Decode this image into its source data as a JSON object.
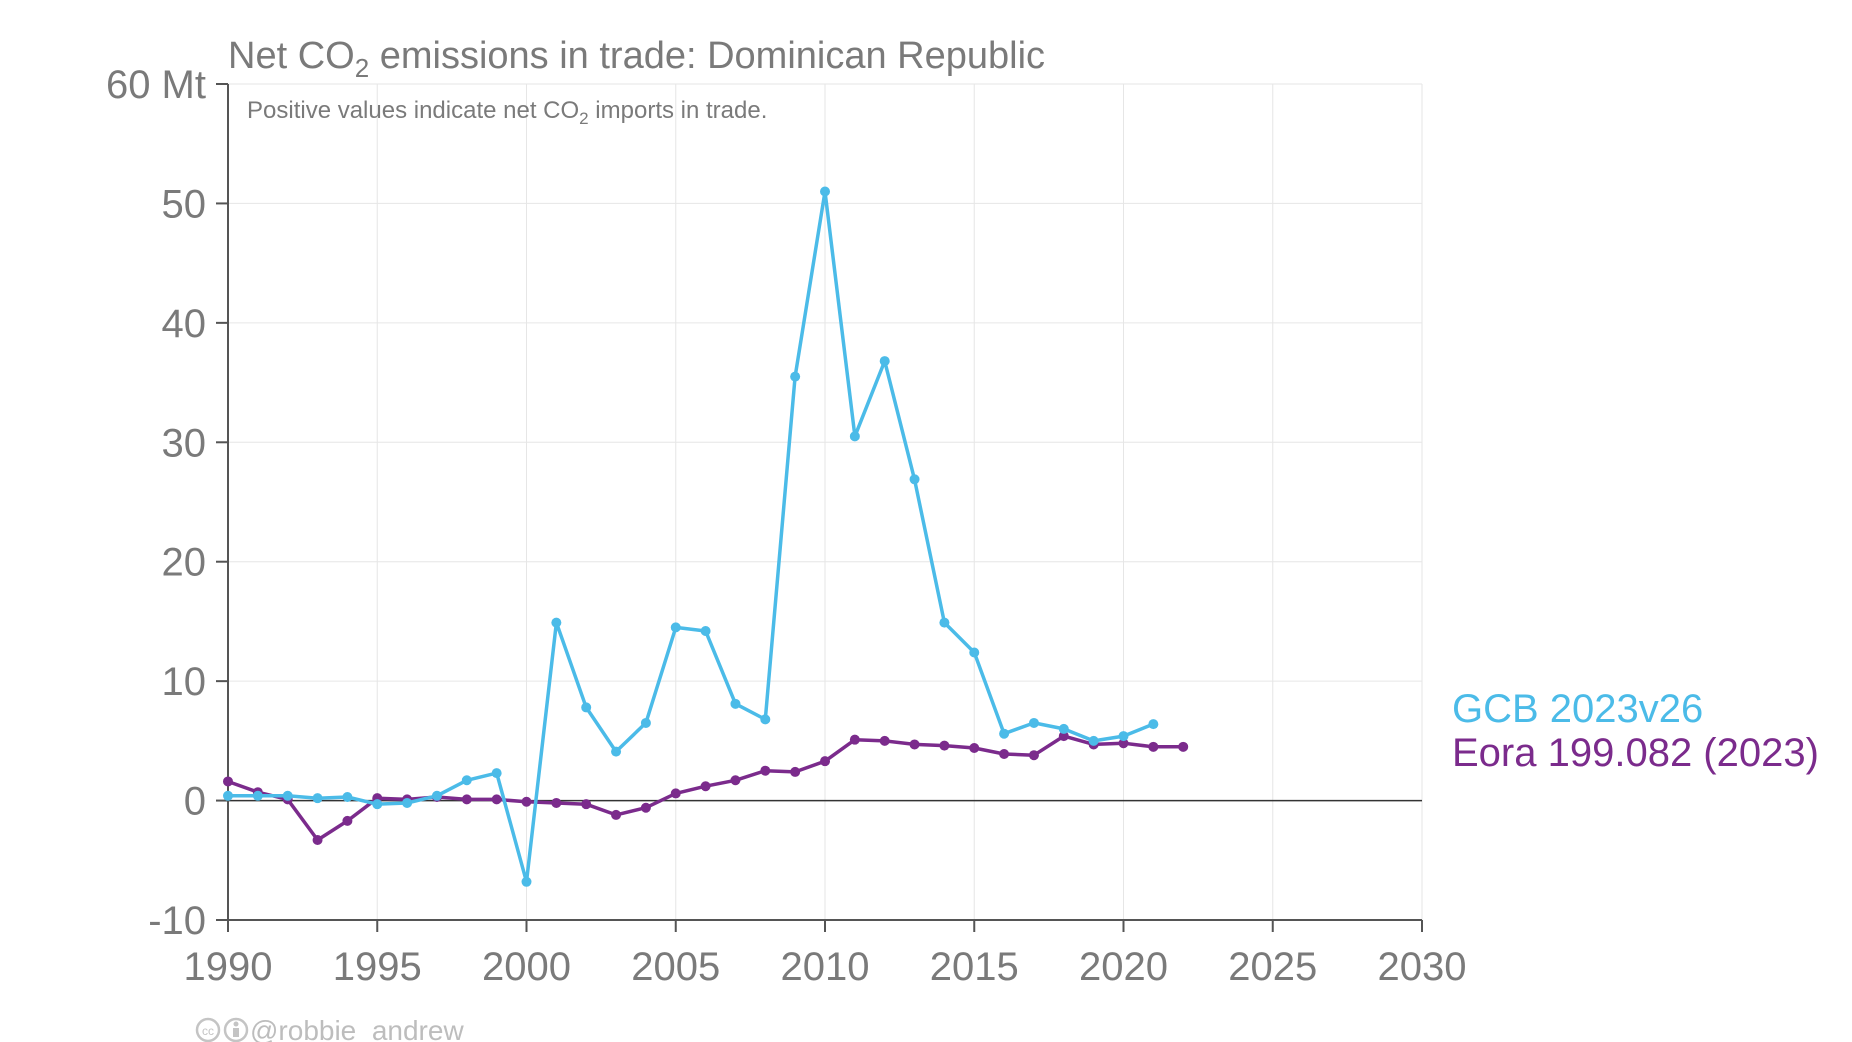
{
  "chart_data": {
    "type": "line",
    "title_prefix": "Net CO",
    "title_sub": "2",
    "title_suffix": " emissions in trade: Dominican Republic",
    "subtitle_prefix": "Positive values indicate net CO",
    "subtitle_sub": "2",
    "subtitle_suffix": " imports in trade.",
    "xlim": [
      1990,
      2030
    ],
    "ylim": [
      -10,
      60
    ],
    "x_ticks": [
      "1990",
      "1995",
      "2000",
      "2005",
      "2010",
      "2015",
      "2020",
      "2025",
      "2030"
    ],
    "y_ticks": [
      "-10",
      "0",
      "10",
      "20",
      "30",
      "40",
      "50",
      "60 Mt"
    ],
    "grid": true,
    "legend_position": "right",
    "series": [
      {
        "name": "GCB 2023v26",
        "color": "#4bbbe8",
        "x": [
          1990,
          1991,
          1992,
          1993,
          1994,
          1995,
          1996,
          1997,
          1998,
          1999,
          2000,
          2001,
          2002,
          2003,
          2004,
          2005,
          2006,
          2007,
          2008,
          2009,
          2010,
          2011,
          2012,
          2013,
          2014,
          2015,
          2016,
          2017,
          2018,
          2019,
          2020,
          2021
        ],
        "values": [
          0.4,
          0.4,
          0.4,
          0.2,
          0.3,
          -0.3,
          -0.2,
          0.4,
          1.7,
          2.3,
          -6.8,
          14.9,
          7.8,
          4.1,
          6.5,
          14.5,
          14.2,
          8.1,
          6.8,
          35.5,
          51.0,
          30.5,
          36.8,
          26.9,
          14.9,
          12.4,
          5.6,
          6.5,
          6.0,
          5.0,
          5.4,
          6.4
        ]
      },
      {
        "name": "Eora 199.082 (2023)",
        "color": "#7b2b8c",
        "x": [
          1990,
          1991,
          1992,
          1993,
          1994,
          1995,
          1996,
          1997,
          1998,
          1999,
          2000,
          2001,
          2002,
          2003,
          2004,
          2005,
          2006,
          2007,
          2008,
          2009,
          2010,
          2011,
          2012,
          2013,
          2014,
          2015,
          2016,
          2017,
          2018,
          2019,
          2020,
          2021,
          2022
        ],
        "values": [
          1.6,
          0.7,
          0.1,
          -3.3,
          -1.7,
          0.2,
          0.1,
          0.3,
          0.1,
          0.1,
          -0.1,
          -0.2,
          -0.3,
          -1.2,
          -0.6,
          0.6,
          1.2,
          1.7,
          2.5,
          2.4,
          3.3,
          5.1,
          5.0,
          4.7,
          4.6,
          4.4,
          3.9,
          3.8,
          5.4,
          4.7,
          4.8,
          4.5,
          4.5
        ]
      }
    ]
  },
  "credit": "@robbie_andrew",
  "credit_icons": "cc-by-icons"
}
